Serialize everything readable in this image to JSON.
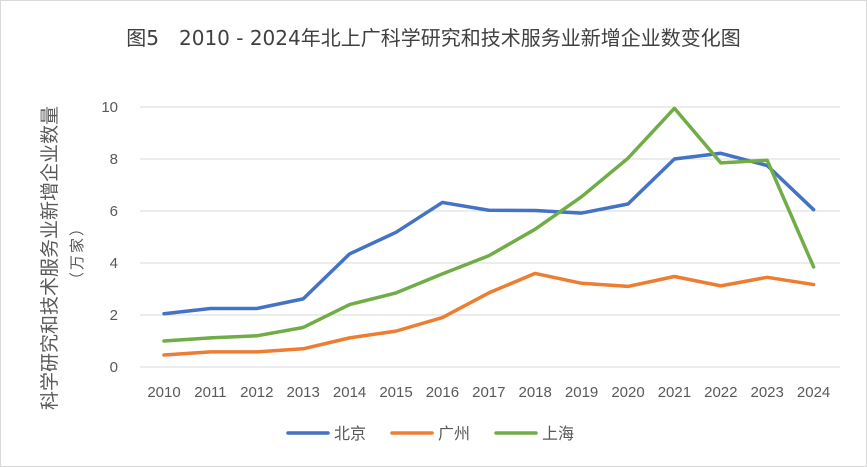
{
  "chart_data": {
    "type": "line",
    "title": "图5　2010 - 2024年北上广科学研究和技术服务业新增企业数变化图",
    "ylabel": "科学研究和技术服务业新增企业数量",
    "yunit": "（万家）",
    "xlabel": "",
    "categories": [
      "2010",
      "2011",
      "2012",
      "2013",
      "2014",
      "2015",
      "2016",
      "2017",
      "2018",
      "2019",
      "2020",
      "2021",
      "2022",
      "2023",
      "2024"
    ],
    "ylim": [
      0,
      10
    ],
    "yticks": [
      0,
      2,
      4,
      6,
      8,
      10
    ],
    "grid": true,
    "legend_position": "bottom",
    "series": [
      {
        "name": "北京",
        "color": "#4472C4",
        "values": [
          2.05,
          2.25,
          2.25,
          2.62,
          4.35,
          5.18,
          6.33,
          6.03,
          6.02,
          5.92,
          6.27,
          8.0,
          8.22,
          7.75,
          6.05
        ]
      },
      {
        "name": "广州",
        "color": "#ED7D31",
        "values": [
          0.46,
          0.58,
          0.58,
          0.7,
          1.12,
          1.38,
          1.9,
          2.85,
          3.6,
          3.22,
          3.1,
          3.48,
          3.12,
          3.45,
          3.17
        ]
      },
      {
        "name": "上海",
        "color": "#70AD47",
        "values": [
          1.0,
          1.12,
          1.2,
          1.52,
          2.4,
          2.85,
          3.58,
          4.28,
          5.3,
          6.55,
          8.03,
          9.95,
          7.85,
          7.95,
          3.85
        ]
      }
    ]
  }
}
